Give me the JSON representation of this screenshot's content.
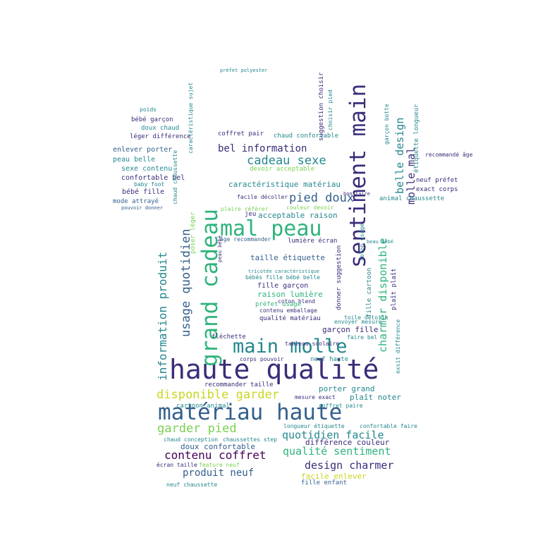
{
  "palette": {
    "indigo": "#3b2c79",
    "blue": "#35608d",
    "teal": "#24878e",
    "green": "#2fb47c",
    "lime": "#7ad151",
    "yellow": "#c8d621",
    "purple": "#472d7b",
    "dark": "#440154"
  },
  "words": [
    {
      "text": "haute qualité",
      "color": "indigo"
    },
    {
      "text": "matériau haute",
      "color": "blue"
    },
    {
      "text": "mal peau",
      "color": "green"
    },
    {
      "text": "main molle",
      "color": "teal"
    },
    {
      "text": "grand cadeau",
      "color": "green"
    },
    {
      "text": "sentiment main",
      "color": "indigo"
    },
    {
      "text": "disponible garder",
      "color": "yellow"
    },
    {
      "text": "garder pied",
      "color": "lime"
    },
    {
      "text": "contenu coffret",
      "color": "dark"
    },
    {
      "text": "quotidien facile",
      "color": "teal"
    },
    {
      "text": "qualité sentiment",
      "color": "green"
    },
    {
      "text": "design charmer",
      "color": "indigo"
    },
    {
      "text": "produit neuf",
      "color": "blue"
    },
    {
      "text": "cadeau sexe",
      "color": "teal"
    },
    {
      "text": "bel information",
      "color": "indigo"
    },
    {
      "text": "pied doux",
      "color": "blue"
    },
    {
      "text": "usage quotidien",
      "color": "blue"
    },
    {
      "text": "information produit",
      "color": "teal"
    },
    {
      "text": "charmer disponible",
      "color": "green"
    },
    {
      "text": "belle design",
      "color": "teal"
    },
    {
      "text": "molle mal",
      "color": "indigo"
    },
    {
      "text": "caractéristique matériau",
      "color": "teal"
    },
    {
      "text": "acceptable raison",
      "color": "teal"
    },
    {
      "text": "taille étiquette",
      "color": "blue"
    },
    {
      "text": "raison lumière",
      "color": "green"
    },
    {
      "text": "fille garçon",
      "color": "indigo"
    },
    {
      "text": "garçon fille",
      "color": "indigo"
    },
    {
      "text": "porter grand",
      "color": "teal"
    },
    {
      "text": "plaît noter",
      "color": "teal"
    },
    {
      "text": "différence couleur",
      "color": "indigo"
    },
    {
      "text": "doux confortable",
      "color": "blue"
    },
    {
      "text": "facile enlever",
      "color": "yellow"
    },
    {
      "text": "fille enfant",
      "color": "blue"
    },
    {
      "text": "cartoon animal",
      "color": "teal"
    },
    {
      "text": "enlever porter",
      "color": "blue"
    },
    {
      "text": "peau belle",
      "color": "teal"
    },
    {
      "text": "sexe contenu",
      "color": "teal"
    },
    {
      "text": "confortable bel",
      "color": "indigo"
    },
    {
      "text": "bébé fille",
      "color": "indigo"
    },
    {
      "text": "mode attrayé",
      "color": "blue"
    },
    {
      "text": "doux chaud",
      "color": "teal"
    },
    {
      "text": "léger différence",
      "color": "indigo"
    },
    {
      "text": "bébé garçon",
      "color": "indigo"
    },
    {
      "text": "coffret pair",
      "color": "indigo"
    },
    {
      "text": "chaud confortable",
      "color": "teal"
    },
    {
      "text": "devoir acceptable",
      "color": "lime"
    },
    {
      "text": "lumière écran",
      "color": "indigo"
    },
    {
      "text": "âge recommander",
      "color": "blue"
    },
    {
      "text": "fille cartoon",
      "color": "teal"
    },
    {
      "text": "animal chaussette",
      "color": "teal"
    },
    {
      "text": "exact corps",
      "color": "indigo"
    },
    {
      "text": "neuf préfet",
      "color": "indigo"
    },
    {
      "text": "étiquette longueur",
      "color": "teal"
    },
    {
      "text": "qualité matériau",
      "color": "indigo"
    },
    {
      "text": "contenu emballage",
      "color": "indigo"
    },
    {
      "text": "coton blend",
      "color": "indigo"
    },
    {
      "text": "envoyer mesure",
      "color": "teal"
    },
    {
      "text": "toile détoile",
      "color": "teal"
    },
    {
      "text": "faire bel",
      "color": "teal"
    },
    {
      "text": "fléchette",
      "color": "indigo"
    },
    {
      "text": "neuf haute",
      "color": "teal"
    },
    {
      "text": "corps pouvoir",
      "color": "indigo"
    },
    {
      "text": "recommander taille",
      "color": "indigo"
    },
    {
      "text": "mesure exact",
      "color": "indigo"
    },
    {
      "text": "coffret paire",
      "color": "teal"
    },
    {
      "text": "confortable faire",
      "color": "teal"
    },
    {
      "text": "longueur étiquette",
      "color": "teal"
    },
    {
      "text": "chaud conception",
      "color": "teal"
    },
    {
      "text": "chaussettes step",
      "color": "teal"
    },
    {
      "text": "écran taille",
      "color": "indigo"
    },
    {
      "text": "feature neuf",
      "color": "lime"
    },
    {
      "text": "neuf chaussette",
      "color": "teal"
    },
    {
      "text": "préfet usage",
      "color": "green"
    },
    {
      "text": "bébés fille bébé belle",
      "color": "teal"
    },
    {
      "text": "donner suggestion",
      "color": "indigo"
    },
    {
      "text": "coton usage",
      "color": "teal"
    },
    {
      "text": "plaît plaît",
      "color": "indigo"
    },
    {
      "text": "exsit différence",
      "color": "teal"
    },
    {
      "text": "facile décoller",
      "color": "indigo"
    },
    {
      "text": "plaire référer",
      "color": "lime"
    },
    {
      "text": "couleur devoir",
      "color": "lime"
    },
    {
      "text": "suggestion choisir",
      "color": "indigo"
    },
    {
      "text": "choisir pied",
      "color": "teal"
    },
    {
      "text": "poser léger",
      "color": "lime"
    },
    {
      "text": "garçon botte",
      "color": "teal"
    },
    {
      "text": "préfet polyester",
      "color": "teal"
    },
    {
      "text": "bon faire",
      "color": "indigo"
    },
    {
      "text": "beau bébé",
      "color": "teal"
    },
    {
      "text": "peau bébé",
      "color": "indigo"
    },
    {
      "text": "tricotée caractéristique",
      "color": "teal"
    },
    {
      "text": "tableau scolaire",
      "color": "indigo"
    },
    {
      "text": "chaud chaussette",
      "color": "teal"
    },
    {
      "text": "caractéristique sujet",
      "color": "teal"
    },
    {
      "text": "recommandé âge",
      "color": "indigo"
    },
    {
      "text": "baby foot",
      "color": "teal"
    },
    {
      "text": "poids",
      "color": "teal"
    },
    {
      "text": "jeu",
      "color": "indigo"
    },
    {
      "text": "pouvoir donner",
      "color": "blue"
    }
  ]
}
